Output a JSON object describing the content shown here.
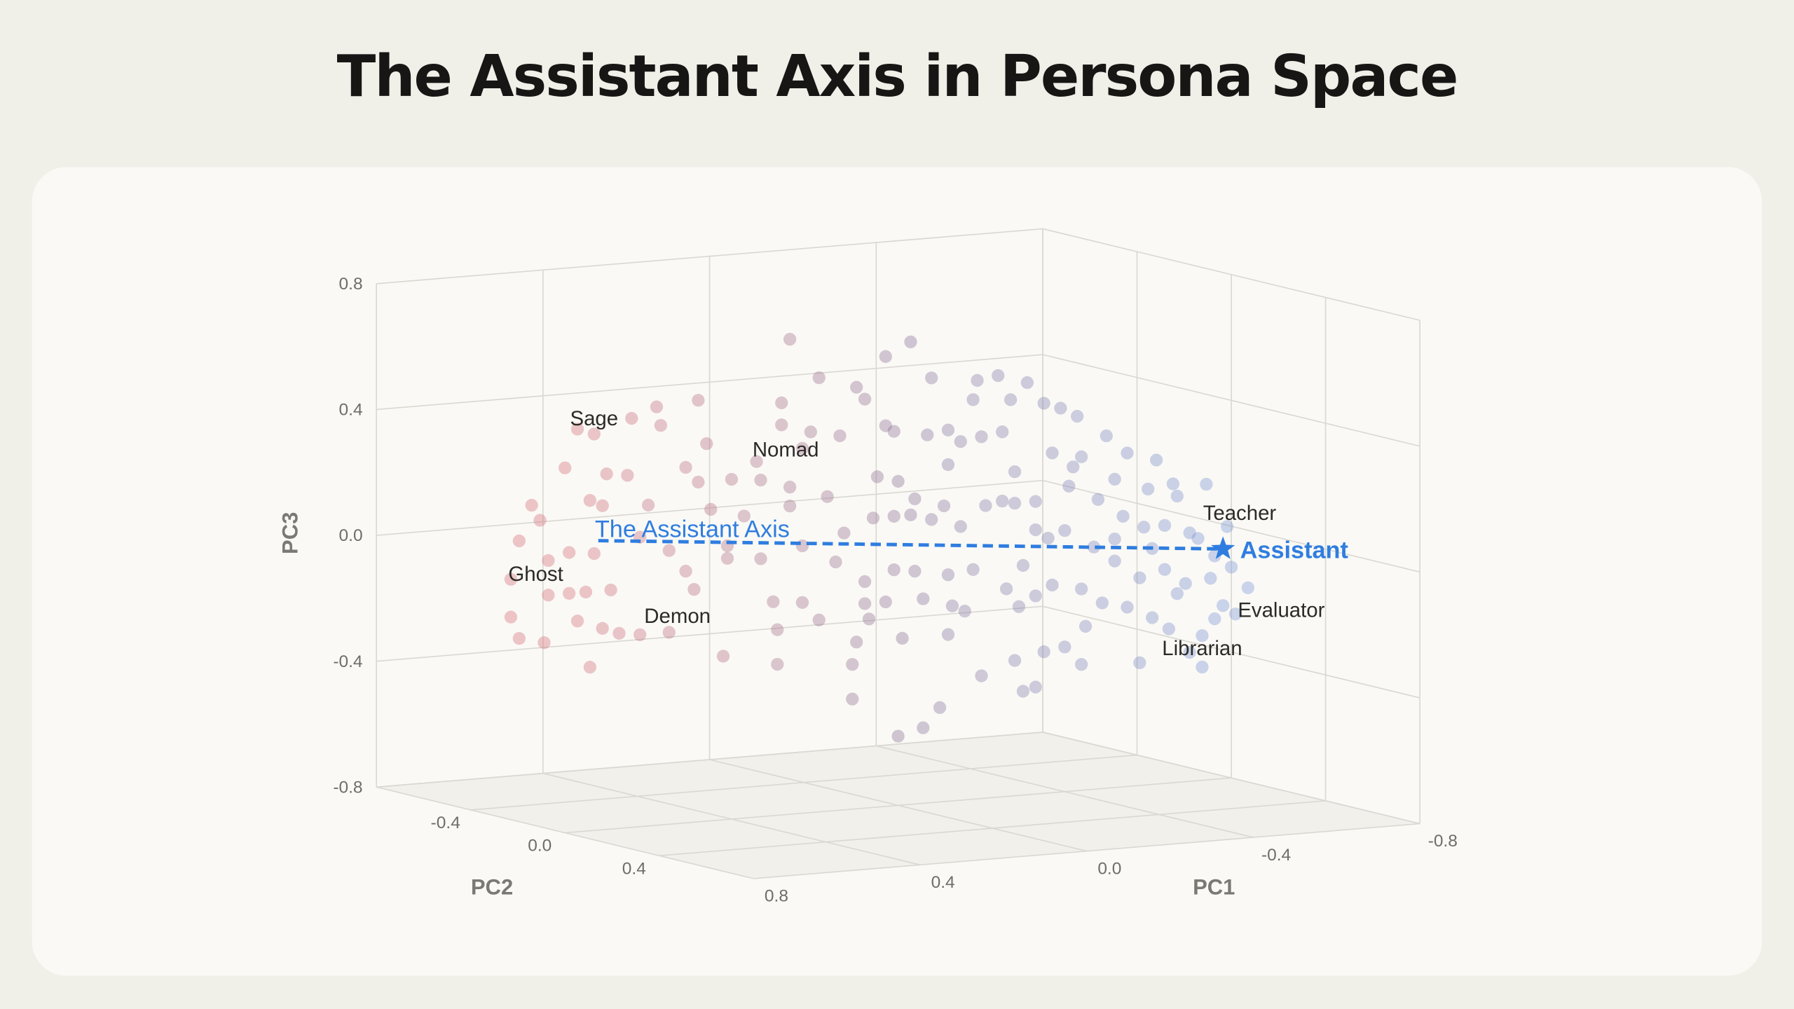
{
  "title": "The Assistant Axis in Persona Space",
  "chart_data": {
    "type": "scatter3d",
    "title": "The Assistant Axis in Persona Space",
    "axes": {
      "x": {
        "label": "PC1",
        "range": [
          0.8,
          -0.8
        ],
        "ticks": [
          "0.8",
          "0.4",
          "0.0",
          "-0.4",
          "-0.8"
        ]
      },
      "y": {
        "label": "PC2",
        "range": [
          -0.8,
          0.8
        ],
        "ticks": [
          "-0.4",
          "0.0",
          "0.4"
        ]
      },
      "z": {
        "label": "PC3",
        "range": [
          -0.8,
          0.8
        ],
        "ticks": [
          "0.8",
          "0.4",
          "0.0",
          "-0.4",
          "-0.8"
        ]
      }
    },
    "grid": true,
    "point_color_scale": {
      "positive_pc1": "#d66e78",
      "middle": "#8a7196",
      "negative_pc1": "#7896d7"
    },
    "points_pc1_pc2_pc3": [
      [
        0.77,
        0,
        0.48
      ],
      [
        0.73,
        0,
        0.46
      ],
      [
        0.64,
        0,
        0.5
      ],
      [
        0.58,
        0,
        0.53
      ],
      [
        0.57,
        0,
        0.47
      ],
      [
        0.8,
        0,
        0.36
      ],
      [
        0.7,
        0,
        0.33
      ],
      [
        0.65,
        0,
        0.32
      ],
      [
        0.74,
        0,
        0.25
      ],
      [
        0.71,
        0,
        0.23
      ],
      [
        0.88,
        0,
        0.25
      ],
      [
        0.86,
        0,
        0.2
      ],
      [
        0.91,
        0,
        0.14
      ],
      [
        0.84,
        0,
        0.07
      ],
      [
        0.79,
        0,
        0.09
      ],
      [
        0.73,
        0,
        0.08
      ],
      [
        0.93,
        0,
        0.02
      ],
      [
        0.84,
        0,
        -0.04
      ],
      [
        0.79,
        0,
        -0.04
      ],
      [
        0.75,
        0,
        -0.04
      ],
      [
        0.69,
        0,
        -0.04
      ],
      [
        0.93,
        0,
        -0.1
      ],
      [
        0.91,
        0,
        -0.17
      ],
      [
        0.85,
        0,
        -0.19
      ],
      [
        0.77,
        0,
        -0.13
      ],
      [
        0.71,
        0,
        -0.16
      ],
      [
        0.67,
        0,
        -0.18
      ],
      [
        0.74,
        0,
        -0.28
      ],
      [
        0.62,
        0,
        -0.19
      ],
      [
        0.55,
        0,
        -0.19
      ],
      [
        0.6,
        0,
        0.22
      ],
      [
        0.62,
        0,
        0.12
      ],
      [
        0.55,
        0,
        0.07
      ],
      [
        0.51,
        0,
        0.0
      ],
      [
        0.49,
        0,
        -0.06
      ],
      [
        0.48,
        0,
        0.54
      ],
      [
        0.46,
        0,
        0.4
      ],
      [
        0.51,
        0,
        0.33
      ],
      [
        0.48,
        0,
        0.28
      ],
      [
        0.45,
        0,
        0.19
      ],
      [
        0.4,
        0,
        0.28
      ],
      [
        0.41,
        0,
        0.07
      ],
      [
        0.37,
        0,
        0.16
      ],
      [
        0.33,
        0,
        0.27
      ],
      [
        0.34,
        0,
        0.33
      ],
      [
        0.28,
        0,
        0.51
      ],
      [
        0.28,
        0,
        0.44
      ],
      [
        0.23,
        0,
        0.36
      ],
      [
        0.21,
        0,
        0.41
      ],
      [
        0.26,
        0,
        0.18
      ],
      [
        0.26,
        0,
        0.24
      ],
      [
        0.17,
        0,
        0.2
      ],
      [
        0.14,
        0,
        0.39
      ],
      [
        0.19,
        0,
        0.58
      ],
      [
        0.26,
        0,
        0.71
      ],
      [
        0.03,
        0,
        0.63
      ],
      [
        -0.03,
        0,
        0.67
      ],
      [
        0.1,
        0,
        0.54
      ],
      [
        0.08,
        0,
        0.5
      ],
      [
        -0.08,
        0,
        0.55
      ],
      [
        -0.19,
        0,
        0.53
      ],
      [
        -0.24,
        0,
        0.54
      ],
      [
        -0.31,
        0,
        0.51
      ],
      [
        -0.27,
        0,
        0.46
      ],
      [
        -0.18,
        0,
        0.47
      ],
      [
        0.03,
        0,
        0.41
      ],
      [
        0.01,
        0,
        0.39
      ],
      [
        -0.07,
        0,
        0.37
      ],
      [
        -0.12,
        0,
        0.38
      ],
      [
        -0.15,
        0,
        0.34
      ],
      [
        -0.2,
        0,
        0.35
      ],
      [
        -0.25,
        0,
        0.36
      ],
      [
        -0.12,
        0,
        0.27
      ],
      [
        0.05,
        0,
        0.25
      ],
      [
        0.0,
        0,
        0.23
      ],
      [
        -0.04,
        0,
        0.17
      ],
      [
        -0.11,
        0,
        0.14
      ],
      [
        -0.21,
        0,
        0.13
      ],
      [
        -0.25,
        0,
        0.14
      ],
      [
        0.13,
        0,
        0.08
      ],
      [
        0.06,
        0,
        0.12
      ],
      [
        0.01,
        0,
        0.12
      ],
      [
        -0.03,
        0,
        0.12
      ],
      [
        -0.08,
        0,
        0.1
      ],
      [
        -0.15,
        0,
        0.07
      ],
      [
        0.15,
        0,
        -0.01
      ],
      [
        0.08,
        0,
        -0.08
      ],
      [
        0.01,
        0,
        -0.05
      ],
      [
        -0.04,
        0,
        -0.06
      ],
      [
        -0.12,
        0,
        -0.08
      ],
      [
        -0.18,
        0,
        -0.07
      ],
      [
        -0.06,
        0,
        -0.15
      ],
      [
        -0.13,
        0,
        -0.18
      ],
      [
        -0.16,
        0,
        -0.2
      ],
      [
        0.08,
        0,
        -0.15
      ],
      [
        0.03,
        0,
        -0.15
      ],
      [
        0.07,
        0,
        -0.2
      ],
      [
        0.19,
        0,
        -0.19
      ],
      [
        0.23,
        0,
        -0.13
      ],
      [
        0.3,
        0,
        -0.12
      ],
      [
        0.29,
        0,
        -0.21
      ],
      [
        0.42,
        0,
        -0.28
      ],
      [
        0.29,
        0,
        -0.32
      ],
      [
        0.11,
        0,
        -0.34
      ],
      [
        0.1,
        0,
        -0.27
      ],
      [
        -0.01,
        0,
        -0.27
      ],
      [
        0.11,
        0,
        -0.45
      ],
      [
        -0.1,
        0,
        -0.5
      ],
      [
        -0.06,
        0,
        -0.56
      ],
      [
        0.0,
        0,
        -0.58
      ],
      [
        -0.2,
        0,
        -0.41
      ],
      [
        -0.12,
        0,
        -0.27
      ],
      [
        0.41,
        0,
        0.03
      ],
      [
        0.33,
        0,
        0.02
      ],
      [
        0.23,
        0,
        0.05
      ],
      [
        -0.35,
        0,
        0.44
      ],
      [
        -0.39,
        0,
        0.42
      ],
      [
        -0.43,
        0,
        0.39
      ],
      [
        -0.5,
        0,
        0.32
      ],
      [
        -0.55,
        0,
        0.26
      ],
      [
        -0.62,
        0,
        0.23
      ],
      [
        -0.66,
        0,
        0.15
      ],
      [
        -0.74,
        0,
        0.14
      ],
      [
        -0.79,
        0,
        0.0
      ],
      [
        -0.67,
        0,
        0.11
      ],
      [
        -0.6,
        0,
        0.14
      ],
      [
        -0.52,
        0,
        0.18
      ],
      [
        -0.44,
        0,
        0.26
      ],
      [
        -0.42,
        0,
        0.23
      ],
      [
        -0.37,
        0,
        0.28
      ],
      [
        -0.28,
        0,
        0.23
      ],
      [
        -0.33,
        0,
        0.13
      ],
      [
        -0.41,
        0,
        0.17
      ],
      [
        -0.48,
        0,
        0.12
      ],
      [
        -0.54,
        0,
        0.06
      ],
      [
        -0.59,
        0,
        0.02
      ],
      [
        -0.64,
        0,
        0.02
      ],
      [
        -0.7,
        0,
        -0.01
      ],
      [
        -0.72,
        0,
        -0.03
      ],
      [
        -0.76,
        0,
        -0.09
      ],
      [
        -0.8,
        0,
        -0.13
      ],
      [
        -0.84,
        0,
        -0.2
      ],
      [
        -0.78,
        0,
        -0.25
      ],
      [
        -0.76,
        0,
        -0.29
      ],
      [
        -0.81,
        0,
        -0.28
      ],
      [
        -0.73,
        0,
        -0.34
      ],
      [
        -0.7,
        0,
        -0.39
      ],
      [
        -0.73,
        0,
        -0.44
      ],
      [
        -0.65,
        0,
        -0.31
      ],
      [
        -0.61,
        0,
        -0.27
      ],
      [
        -0.55,
        0,
        -0.23
      ],
      [
        -0.49,
        0,
        -0.21
      ],
      [
        -0.44,
        0,
        -0.16
      ],
      [
        -0.37,
        0,
        -0.14
      ],
      [
        -0.33,
        0,
        -0.17
      ],
      [
        -0.29,
        0,
        -0.2
      ],
      [
        -0.26,
        0,
        -0.14
      ],
      [
        -0.3,
        0,
        -0.07
      ],
      [
        -0.36,
        0,
        0.01
      ],
      [
        -0.4,
        0,
        0.03
      ],
      [
        -0.47,
        0,
        -0.03
      ],
      [
        -0.52,
        0,
        -0.08
      ],
      [
        -0.58,
        0,
        -0.14
      ],
      [
        -0.64,
        0,
        -0.12
      ],
      [
        -0.69,
        0,
        -0.17
      ],
      [
        -0.75,
        0,
        -0.16
      ],
      [
        -0.61,
        0,
        -0.05
      ],
      [
        -0.45,
        0,
        -0.28
      ],
      [
        -0.4,
        0,
        -0.34
      ],
      [
        -0.35,
        0,
        -0.35
      ],
      [
        -0.28,
        0,
        -0.37
      ],
      [
        -0.3,
        0,
        -0.47
      ],
      [
        -0.33,
        0,
        -0.46
      ],
      [
        -0.44,
        0,
        -0.4
      ],
      [
        -0.58,
        0,
        -0.41
      ],
      [
        -0.67,
        0,
        -0.2
      ],
      [
        -0.52,
        0,
        -0.01
      ],
      [
        -0.28,
        0,
        0.13
      ],
      [
        -0.33,
        0,
        0.04
      ]
    ],
    "assistant_axis": {
      "label": "The Assistant Axis",
      "start": [
        0.72,
        0,
        0.12
      ],
      "end": [
        -0.78,
        0,
        -0.07
      ],
      "color": "#2f7de0",
      "end_marker": "star",
      "end_label": "Assistant"
    },
    "annotations": [
      {
        "text": "Sage",
        "at": [
          0.73,
          0,
          0.51
        ]
      },
      {
        "text": "Nomad",
        "at": [
          0.27,
          0,
          0.36
        ]
      },
      {
        "text": "Ghost",
        "at": [
          0.87,
          0,
          0.03
        ]
      },
      {
        "text": "Demon",
        "at": [
          0.53,
          0,
          -0.14
        ]
      },
      {
        "text": "Teacher",
        "at": [
          -0.82,
          0,
          0.04
        ]
      },
      {
        "text": "Evaluator",
        "at": [
          -0.92,
          0,
          -0.28
        ]
      },
      {
        "text": "Librarian",
        "at": [
          -0.73,
          0,
          -0.38
        ]
      }
    ]
  }
}
